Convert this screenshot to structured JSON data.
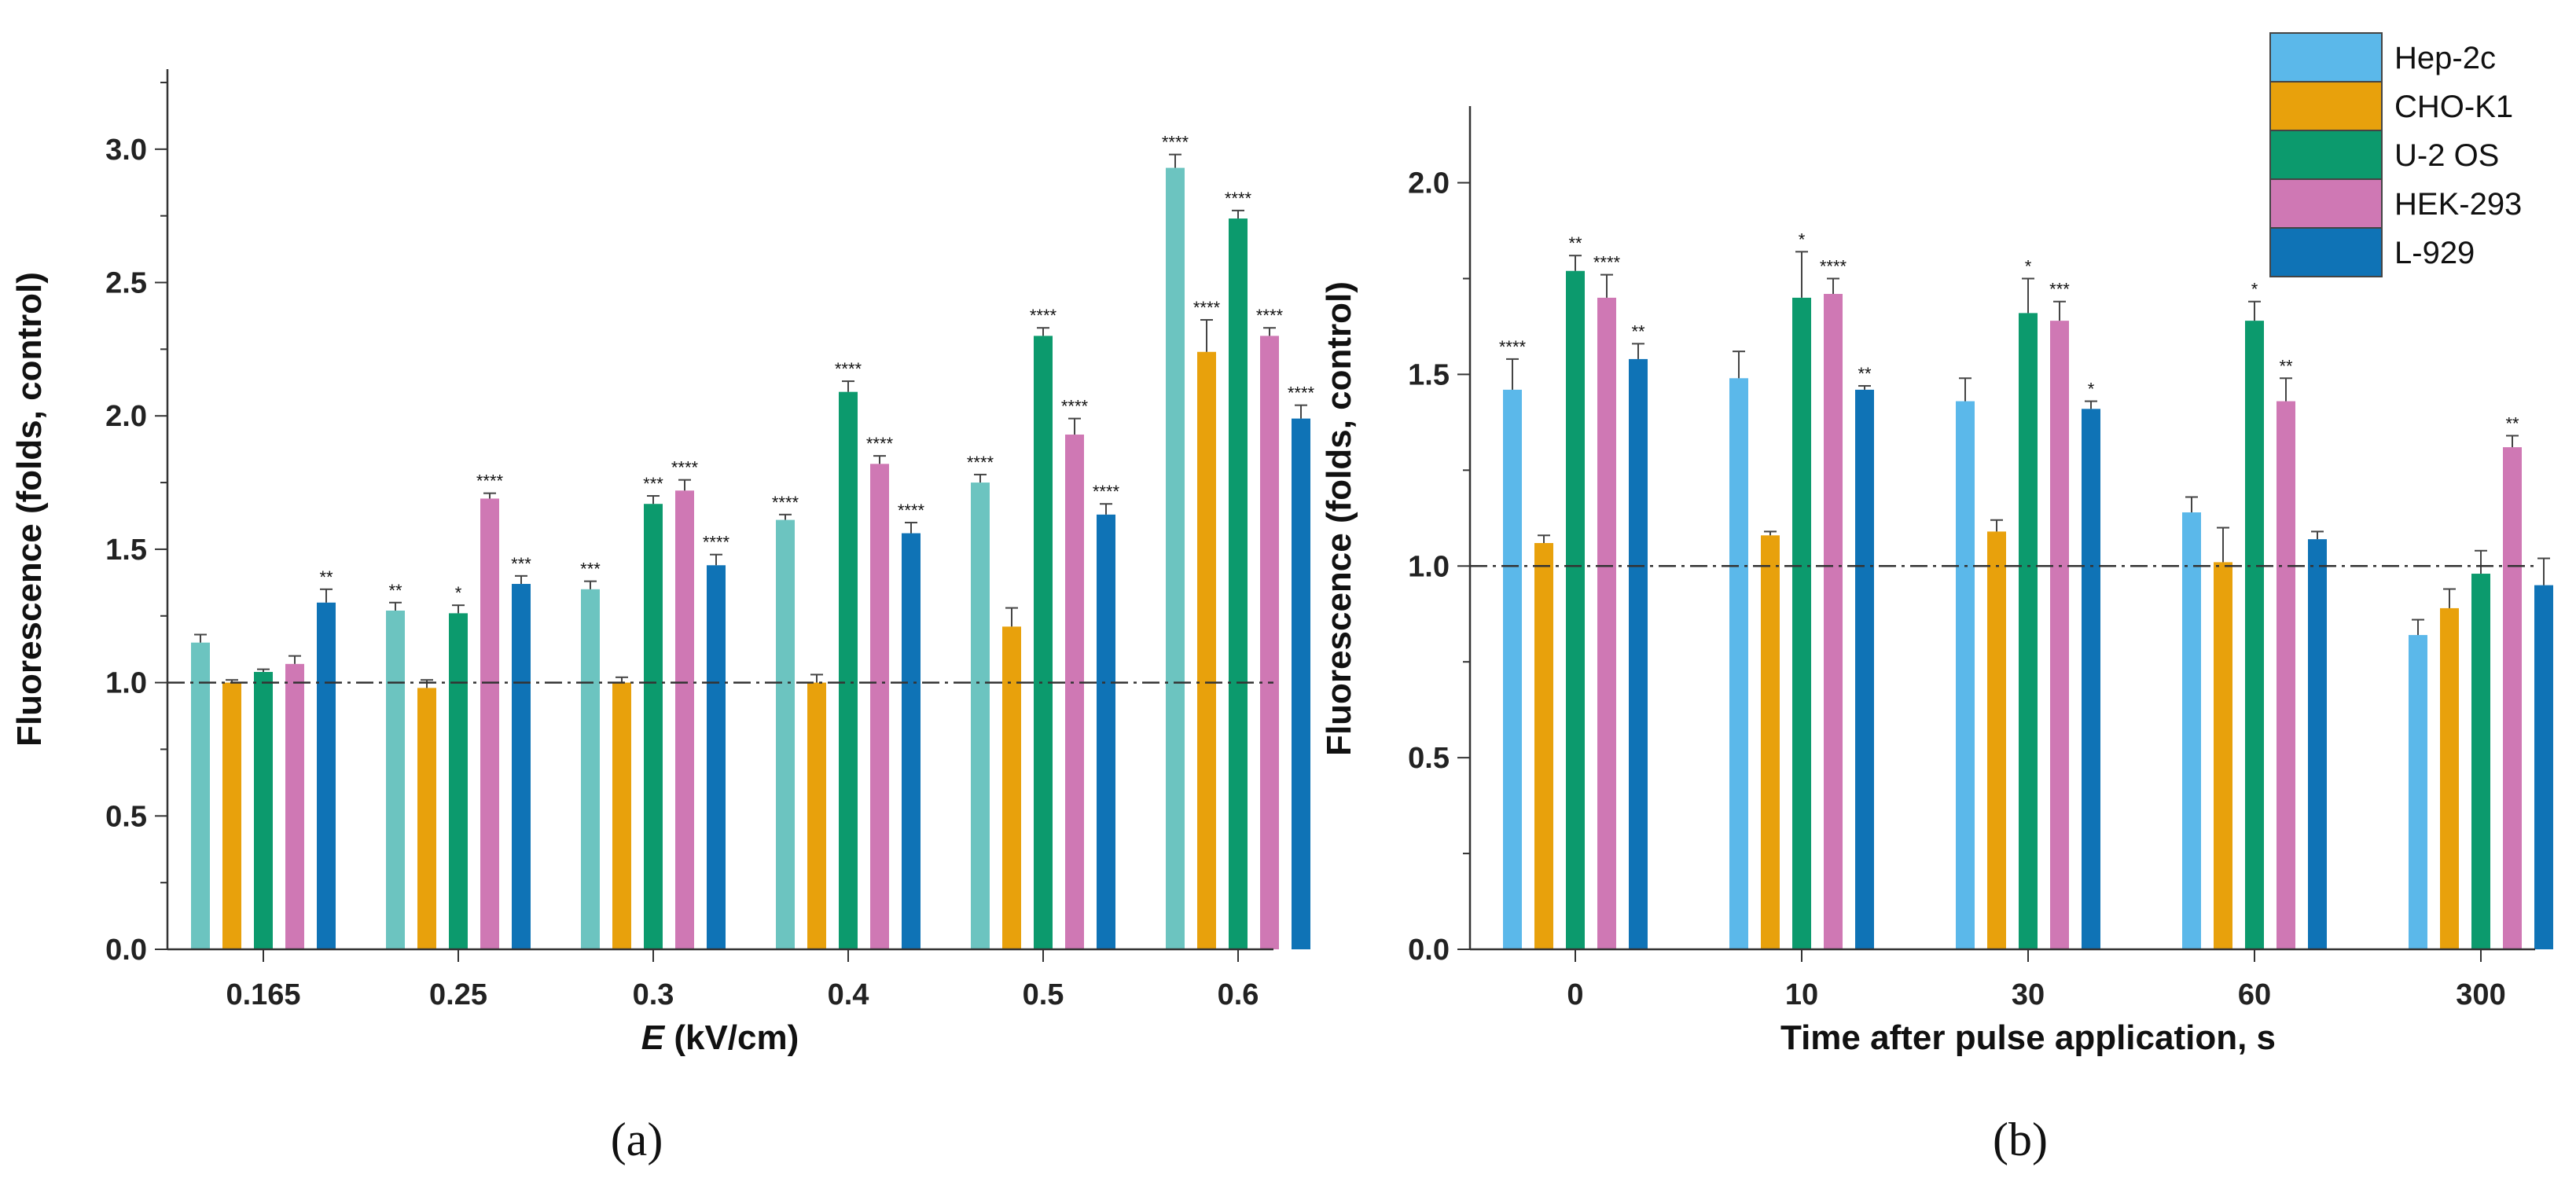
{
  "colors": {
    "Hep-2c_a": "#6cc4c0",
    "Hep-2c": "#5bb8ea",
    "CHO-K1": "#e8a10c",
    "U-2 OS": "#0c9a6d",
    "HEK-293": "#cf78b4",
    "L-929": "#0f73b6"
  },
  "legend": {
    "items": [
      "Hep-2c",
      "CHO-K1",
      "U-2 OS",
      "HEK-293",
      "L-929"
    ]
  },
  "chart_data": [
    {
      "type": "bar",
      "panel_label": "(a)",
      "title": "",
      "xlabel_italic": "E",
      "xlabel_rest": " (kV/cm)",
      "ylabel": "Fluorescence (folds, control)",
      "ylim": [
        0,
        3.3
      ],
      "yticks": [
        "0.0",
        "0.5",
        "1.0",
        "1.5",
        "2.0",
        "2.5",
        "3.0"
      ],
      "reference_line": 1.0,
      "categories": [
        "0.165",
        "0.25",
        "0.3",
        "0.4",
        "0.5",
        "0.6"
      ],
      "series": [
        {
          "name": "Hep-2c",
          "color_key": "Hep-2c_a",
          "values": [
            1.15,
            1.27,
            1.35,
            1.61,
            1.75,
            2.93
          ],
          "errors": [
            0.03,
            0.03,
            0.03,
            0.02,
            0.03,
            0.05
          ],
          "sig": [
            "",
            "**",
            "***",
            "****",
            "****",
            "****"
          ]
        },
        {
          "name": "CHO-K1",
          "color_key": "CHO-K1",
          "values": [
            1.0,
            0.98,
            1.0,
            1.0,
            1.21,
            2.24
          ],
          "errors": [
            0.01,
            0.03,
            0.02,
            0.03,
            0.07,
            0.12
          ],
          "sig": [
            "",
            "",
            "",
            "",
            "",
            "****"
          ]
        },
        {
          "name": "U-2 OS",
          "color_key": "U-2 OS",
          "values": [
            1.04,
            1.26,
            1.67,
            2.09,
            2.3,
            2.74
          ],
          "errors": [
            0.01,
            0.03,
            0.03,
            0.04,
            0.03,
            0.03
          ],
          "sig": [
            "",
            "*",
            "***",
            "****",
            "****",
            "****"
          ]
        },
        {
          "name": "HEK-293",
          "color_key": "HEK-293",
          "values": [
            1.07,
            1.69,
            1.72,
            1.82,
            1.93,
            2.3
          ],
          "errors": [
            0.03,
            0.02,
            0.04,
            0.03,
            0.06,
            0.03
          ],
          "sig": [
            "",
            "****",
            "****",
            "****",
            "****",
            "****"
          ]
        },
        {
          "name": "L-929",
          "color_key": "L-929",
          "values": [
            1.3,
            1.37,
            1.44,
            1.56,
            1.63,
            1.99
          ],
          "errors": [
            0.05,
            0.03,
            0.04,
            0.04,
            0.04,
            0.05
          ],
          "sig": [
            "**",
            "***",
            "****",
            "****",
            "****",
            "****"
          ]
        }
      ]
    },
    {
      "type": "bar",
      "panel_label": "(b)",
      "title": "",
      "xlabel": "Time after pulse application, s",
      "ylabel": "Fluorescence (folds, control)",
      "ylim": [
        0,
        2.2
      ],
      "yticks": [
        "0.0",
        "0.5",
        "1.0",
        "1.5",
        "2.0"
      ],
      "reference_line": 1.0,
      "categories": [
        "0",
        "10",
        "30",
        "60",
        "300"
      ],
      "series": [
        {
          "name": "Hep-2c",
          "color_key": "Hep-2c",
          "values": [
            1.46,
            1.49,
            1.43,
            1.14,
            0.82
          ],
          "errors": [
            0.08,
            0.07,
            0.06,
            0.04,
            0.04
          ],
          "sig": [
            "****",
            "",
            "",
            "",
            ""
          ]
        },
        {
          "name": "CHO-K1",
          "color_key": "CHO-K1",
          "values": [
            1.06,
            1.08,
            1.09,
            1.01,
            0.89
          ],
          "errors": [
            0.02,
            0.01,
            0.03,
            0.09,
            0.05
          ],
          "sig": [
            "",
            "",
            "",
            "",
            ""
          ]
        },
        {
          "name": "U-2 OS",
          "color_key": "U-2 OS",
          "values": [
            1.77,
            1.7,
            1.66,
            1.64,
            0.98
          ],
          "errors": [
            0.04,
            0.12,
            0.09,
            0.05,
            0.06
          ],
          "sig": [
            "**",
            "*",
            "*",
            "*",
            ""
          ]
        },
        {
          "name": "HEK-293",
          "color_key": "HEK-293",
          "values": [
            1.7,
            1.71,
            1.64,
            1.43,
            1.31
          ],
          "errors": [
            0.06,
            0.04,
            0.05,
            0.06,
            0.03
          ],
          "sig": [
            "****",
            "****",
            "***",
            "**",
            "**"
          ]
        },
        {
          "name": "L-929",
          "color_key": "L-929",
          "values": [
            1.54,
            1.46,
            1.41,
            1.07,
            0.95
          ],
          "errors": [
            0.04,
            0.01,
            0.02,
            0.02,
            0.07
          ],
          "sig": [
            "**",
            "**",
            "*",
            "",
            ""
          ]
        }
      ]
    }
  ]
}
